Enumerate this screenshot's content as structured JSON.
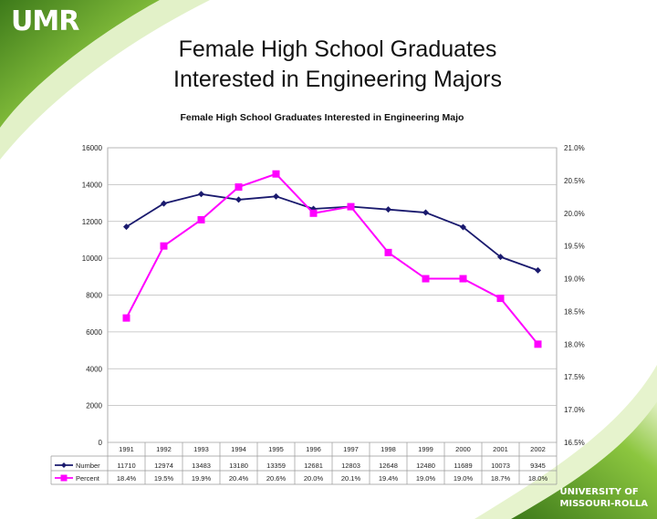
{
  "slide": {
    "logo": "UMR",
    "title_line1": "Female High School Graduates",
    "title_line2": "Interested in Engineering Majors",
    "footer_logo_line1": "UNIVERSITY OF",
    "footer_logo_line2": "MISSOURI-ROLLA"
  },
  "colors": {
    "number_series": "#1a1a6e",
    "percent_series": "#ff00ff",
    "green_accent": "#8cc63f"
  },
  "chart_data": {
    "type": "line",
    "title": "Female High School Graduates Interested in Engineering Majo",
    "categories": [
      "1991",
      "1992",
      "1993",
      "1994",
      "1995",
      "1996",
      "1997",
      "1998",
      "1999",
      "2000",
      "2001",
      "2002"
    ],
    "y_left": {
      "ylim": [
        0,
        16000
      ],
      "ticks": [
        "0",
        "2000",
        "4000",
        "6000",
        "8000",
        "10000",
        "12000",
        "14000",
        "16000"
      ],
      "tick_values": [
        0,
        2000,
        4000,
        6000,
        8000,
        10000,
        12000,
        14000,
        16000
      ]
    },
    "y_right": {
      "ylim": [
        16.5,
        21.0
      ],
      "ticks": [
        "16.5%",
        "17.0%",
        "17.5%",
        "18.0%",
        "18.5%",
        "19.0%",
        "19.5%",
        "20.0%",
        "20.5%",
        "21.0%"
      ],
      "tick_values": [
        16.5,
        17.0,
        17.5,
        18.0,
        18.5,
        19.0,
        19.5,
        20.0,
        20.5,
        21.0
      ]
    },
    "grid": true,
    "legend_placement": "data table below chart",
    "series": [
      {
        "name": "Number",
        "axis": "left",
        "marker": "diamond",
        "values": [
          11710,
          12974,
          13483,
          13180,
          13359,
          12681,
          12803,
          12648,
          12480,
          11689,
          10073,
          9345
        ],
        "labels": [
          "11710",
          "12974",
          "13483",
          "13180",
          "13359",
          "12681",
          "12803",
          "12648",
          "12480",
          "11689",
          "10073",
          "9345"
        ]
      },
      {
        "name": "Percent",
        "axis": "right",
        "marker": "square",
        "values": [
          18.4,
          19.5,
          19.9,
          20.4,
          20.6,
          20.0,
          20.1,
          19.4,
          19.0,
          19.0,
          18.7,
          18.0
        ],
        "labels": [
          "18.4%",
          "19.5%",
          "19.9%",
          "20.4%",
          "20.6%",
          "20.0%",
          "20.1%",
          "19.4%",
          "19.0%",
          "19.0%",
          "18.7%",
          "18.0%"
        ]
      }
    ]
  }
}
